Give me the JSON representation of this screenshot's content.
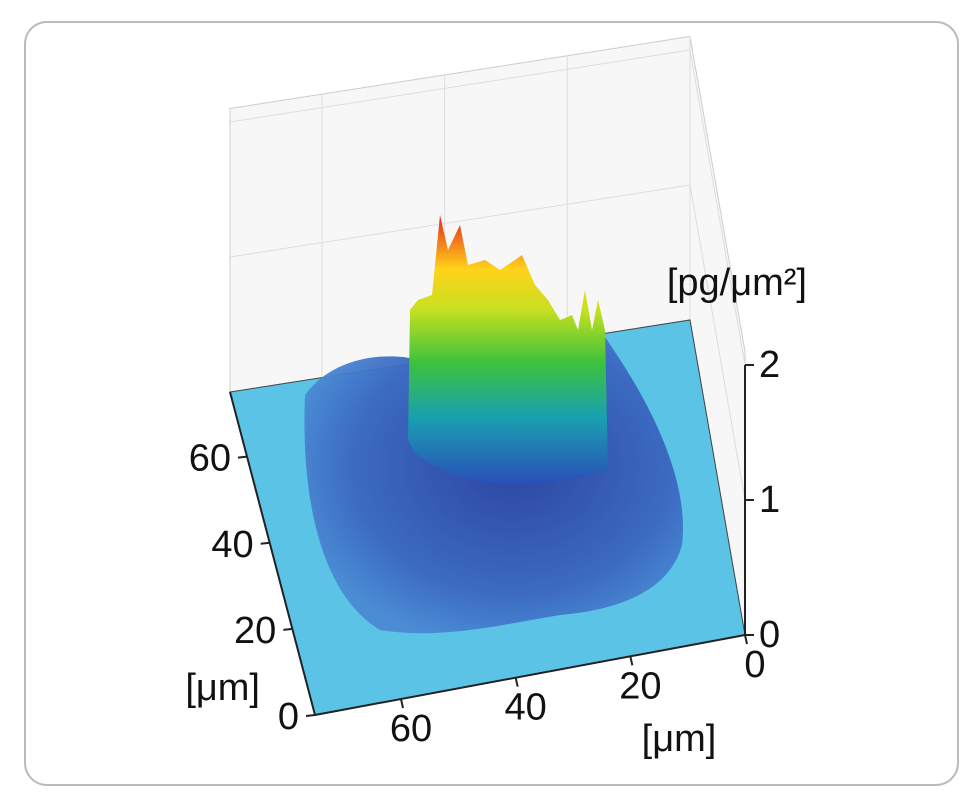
{
  "chart_data": {
    "type": "surface3d",
    "x_label": "[μm]",
    "y_label": "[μm]",
    "z_label": "[pg/μm²]",
    "xlim": [
      0,
      75
    ],
    "xticks": [
      0,
      20,
      40,
      60
    ],
    "ylim": [
      0,
      75
    ],
    "yticks": [
      0,
      20,
      40,
      60
    ],
    "zlim": [
      0,
      2
    ],
    "zticks": [
      0,
      1,
      2
    ],
    "floor_color": "#5bc3e6"
  }
}
